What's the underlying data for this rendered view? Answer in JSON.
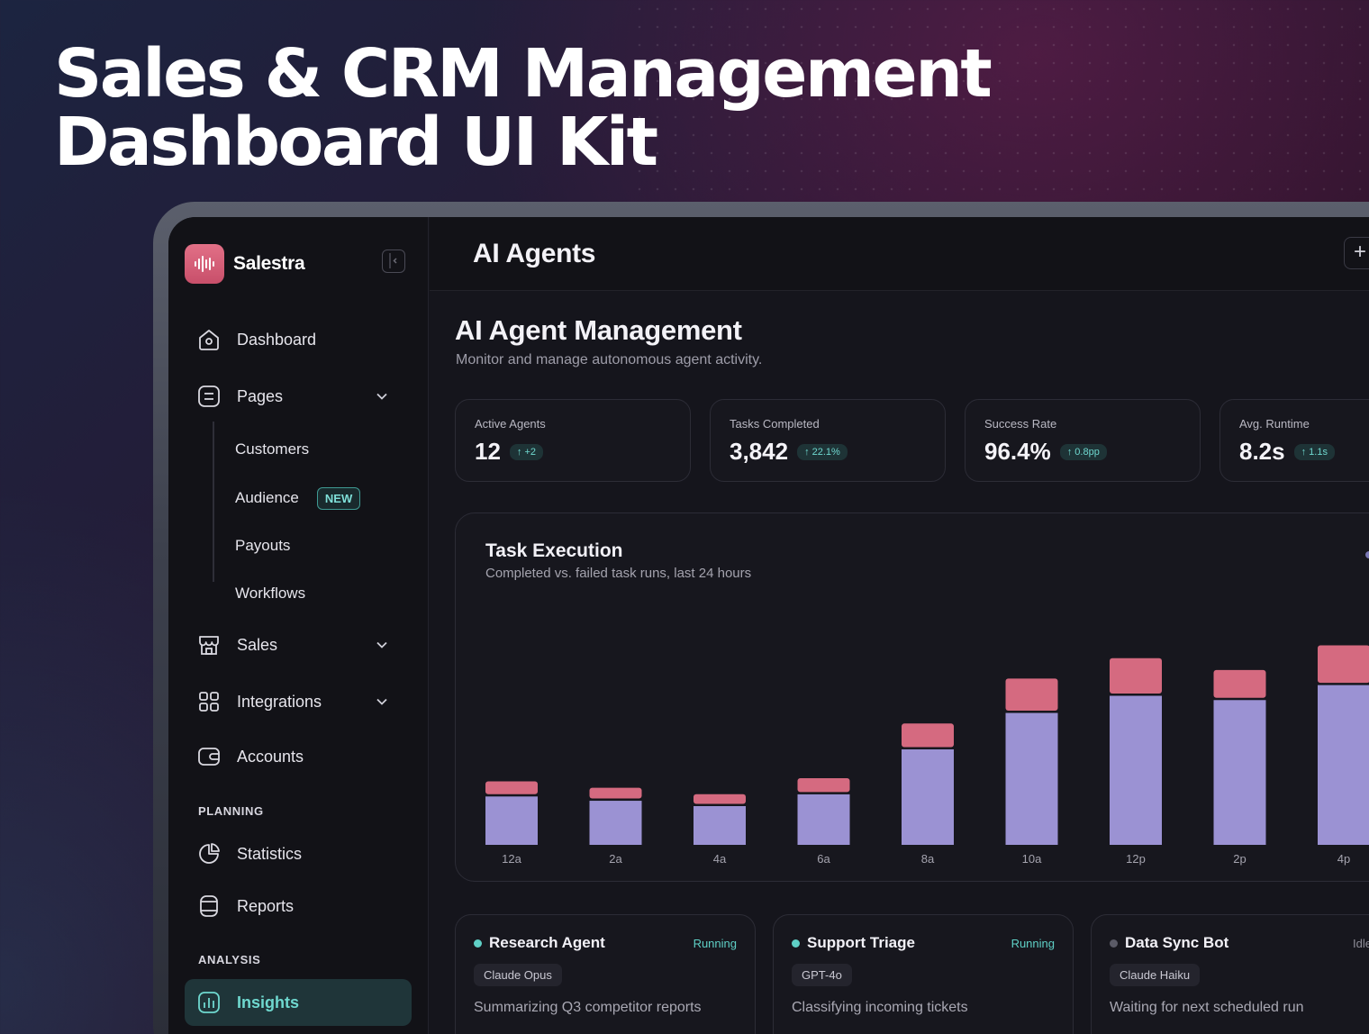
{
  "hero": {
    "line1": "Sales & CRM Management",
    "line2": "Dashboard UI Kit"
  },
  "brand": {
    "name": "Salestra",
    "logo_icon": "waveform-icon"
  },
  "sidebar": {
    "nav": [
      {
        "label": "Dashboard",
        "icon": "home-icon"
      },
      {
        "label": "Pages",
        "icon": "document-icon",
        "expanded": true
      },
      {
        "label": "Sales",
        "icon": "store-icon"
      },
      {
        "label": "Integrations",
        "icon": "grid-icon"
      },
      {
        "label": "Accounts",
        "icon": "wallet-icon"
      }
    ],
    "subitems": [
      "Customers",
      "Audience",
      "Payouts",
      "Workflows"
    ],
    "new_badge": "NEW",
    "planning_label": "PLANNING",
    "planning": [
      {
        "label": "Statistics",
        "icon": "pie-chart-icon"
      },
      {
        "label": "Reports",
        "icon": "report-icon"
      }
    ],
    "analysis_label": "ANALYSIS",
    "analysis": [
      {
        "label": "Insights",
        "icon": "bar-chart-icon",
        "active": true
      }
    ]
  },
  "topbar": {
    "title": "AI Agents",
    "add_icon": "plus-icon"
  },
  "page": {
    "title": "AI Agent Management",
    "subtitle": "Monitor and manage autonomous agent activity."
  },
  "stats": [
    {
      "label": "Active Agents",
      "value": "12",
      "delta": "↑ +2"
    },
    {
      "label": "Tasks Completed",
      "value": "3,842",
      "delta": "↑ 22.1%"
    },
    {
      "label": "Success Rate",
      "value": "96.4%",
      "delta": "↑ 0.8pp"
    },
    {
      "label": "Avg. Runtime",
      "value": "8.2s",
      "delta": "↑ 1.1s"
    }
  ],
  "chart": {
    "title": "Task Execution",
    "subtitle": "Completed vs. failed task runs, last 24 hours"
  },
  "chart_data": {
    "type": "bar",
    "stacked": true,
    "categories": [
      "12a",
      "2a",
      "4a",
      "6a",
      "8a",
      "10a",
      "12p",
      "2p",
      "4p"
    ],
    "series": [
      {
        "color": "#9b92d3",
        "values": [
          46,
          42,
          37,
          48,
          90,
          124,
          140,
          136,
          150
        ]
      },
      {
        "color": "#d56a80",
        "values": [
          12,
          10,
          9,
          13,
          22,
          30,
          33,
          26,
          35
        ]
      }
    ],
    "grid": false,
    "legend": "none"
  },
  "agents": [
    {
      "name": "Research Agent",
      "status": "Running",
      "status_color": "#5fd0c6",
      "dot_color": "#5fd0c6",
      "model": "Claude Opus",
      "task": "Summarizing Q3 competitor reports"
    },
    {
      "name": "Support Triage",
      "status": "Running",
      "status_color": "#5fd0c6",
      "dot_color": "#5fd0c6",
      "model": "GPT-4o",
      "task": "Classifying incoming tickets"
    },
    {
      "name": "Data Sync Bot",
      "status": "Idle",
      "status_color": "#8d8c97",
      "dot_color": "#5a5a66",
      "model": "Claude Haiku",
      "task": "Waiting for next scheduled run"
    }
  ],
  "colors": {
    "accent": "#5fd0c6",
    "brand": "#d85c77",
    "bar_completed": "#9b92d3",
    "bar_failed": "#d56a80"
  }
}
